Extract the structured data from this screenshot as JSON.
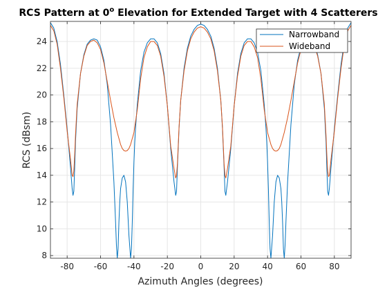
{
  "chart_data": {
    "type": "line",
    "title": "RCS Pattern at 0",
    "title_superscript": "o",
    "title_suffix": " Elevation for Extended Target with 4 Scatterers",
    "xlabel": "Azimuth Angles (degrees)",
    "ylabel": "RCS (dBsm)",
    "xlim": [
      -90,
      90
    ],
    "ylim": [
      7.8,
      25.5
    ],
    "xticks": [
      -80,
      -60,
      -40,
      -20,
      0,
      20,
      40,
      60,
      80
    ],
    "yticks": [
      8,
      10,
      12,
      14,
      16,
      18,
      20,
      22,
      24
    ],
    "grid": true,
    "legend_position": "top-right",
    "series": [
      {
        "name": "Narrowband",
        "color": "#0072BD",
        "x": [
          -90,
          -88,
          -86,
          -84,
          -82,
          -80,
          -78,
          -77,
          -76.5,
          -76,
          -75.5,
          -75,
          -74,
          -72,
          -70,
          -68,
          -66,
          -64,
          -62,
          -60,
          -58,
          -56,
          -54,
          -52,
          -51,
          -50.5,
          -50,
          -49.5,
          -49,
          -48.5,
          -48,
          -47,
          -46,
          -45,
          -44,
          -43,
          -42,
          -41.5,
          -41,
          -40.5,
          -40,
          -39.5,
          -39,
          -38,
          -36,
          -34,
          -32,
          -30,
          -28,
          -26,
          -24,
          -22,
          -20,
          -18,
          -16,
          -15,
          -14.5,
          -14,
          -13.5,
          -13,
          -12,
          -10,
          -8,
          -6,
          -4,
          -2,
          0,
          2,
          4,
          6,
          8,
          10,
          12,
          13,
          13.5,
          14,
          14.5,
          15,
          16,
          18,
          20,
          22,
          24,
          26,
          28,
          30,
          32,
          34,
          36,
          38,
          39,
          39.5,
          40,
          40.5,
          41,
          41.5,
          42,
          43,
          44,
          45,
          46,
          47,
          48,
          48.5,
          49,
          49.5,
          50,
          50.5,
          51,
          52,
          54,
          56,
          58,
          60,
          62,
          64,
          66,
          68,
          70,
          72,
          74,
          75,
          75.5,
          76,
          76.5,
          77,
          78,
          80,
          82,
          84,
          86,
          88,
          90
        ],
        "values": [
          25.4,
          25.0,
          24.0,
          22.3,
          20.0,
          17.5,
          14.6,
          13.0,
          12.5,
          12.8,
          14.5,
          16.5,
          19.0,
          21.6,
          23.0,
          23.8,
          24.1,
          24.2,
          24.1,
          23.6,
          22.6,
          20.8,
          17.8,
          13.5,
          10.5,
          8.8,
          7.8,
          8.5,
          10.5,
          12.0,
          13.0,
          13.8,
          14.0,
          13.5,
          12.0,
          9.5,
          7.8,
          8.5,
          10.5,
          13.0,
          15.0,
          16.5,
          17.6,
          19.3,
          21.8,
          23.2,
          23.9,
          24.2,
          24.2,
          23.9,
          23.1,
          21.6,
          19.2,
          16.0,
          13.5,
          12.5,
          12.8,
          14.5,
          16.0,
          17.5,
          19.6,
          22.0,
          23.5,
          24.4,
          24.9,
          25.2,
          25.3,
          25.2,
          24.9,
          24.4,
          23.5,
          22.0,
          19.6,
          17.5,
          16.0,
          14.5,
          12.8,
          12.5,
          13.5,
          16.0,
          19.2,
          21.6,
          23.1,
          23.9,
          24.2,
          24.2,
          23.9,
          23.2,
          21.8,
          19.3,
          17.6,
          16.5,
          15.0,
          13.0,
          10.5,
          8.5,
          7.8,
          9.5,
          12.0,
          13.5,
          14.0,
          13.8,
          13.0,
          12.0,
          10.5,
          8.5,
          7.8,
          8.8,
          10.5,
          13.5,
          17.8,
          20.8,
          22.6,
          23.6,
          24.1,
          24.2,
          24.1,
          23.8,
          23.0,
          21.6,
          19.0,
          16.5,
          14.5,
          12.8,
          12.5,
          13.0,
          14.6,
          17.5,
          20.0,
          22.3,
          24.0,
          25.0,
          25.4
        ]
      },
      {
        "name": "Wideband",
        "color": "#D95319",
        "x": [
          -90,
          -88,
          -86,
          -84,
          -82,
          -80,
          -78,
          -77,
          -76.5,
          -76,
          -75.5,
          -75,
          -74,
          -72,
          -70,
          -68,
          -66,
          -64,
          -62,
          -60,
          -58,
          -56,
          -54,
          -52,
          -50,
          -48,
          -47,
          -46,
          -45,
          -44,
          -43,
          -42,
          -40,
          -38,
          -36,
          -34,
          -32,
          -30,
          -28,
          -26,
          -24,
          -22,
          -20,
          -18,
          -16,
          -15,
          -14.5,
          -14,
          -13.5,
          -13,
          -12,
          -10,
          -8,
          -6,
          -4,
          -2,
          0,
          2,
          4,
          6,
          8,
          10,
          12,
          13,
          13.5,
          14,
          14.5,
          15,
          16,
          18,
          20,
          22,
          24,
          26,
          28,
          30,
          32,
          34,
          36,
          38,
          40,
          42,
          43,
          44,
          45,
          46,
          47,
          48,
          50,
          52,
          54,
          56,
          58,
          60,
          62,
          64,
          66,
          68,
          70,
          72,
          74,
          75,
          75.5,
          76,
          76.5,
          77,
          78,
          80,
          82,
          84,
          86,
          88,
          90
        ],
        "values": [
          25.2,
          24.8,
          23.8,
          22.0,
          19.8,
          17.3,
          15.2,
          14.0,
          13.9,
          14.3,
          15.5,
          17.0,
          19.3,
          21.6,
          22.9,
          23.7,
          24.0,
          24.1,
          23.9,
          23.4,
          22.4,
          21.0,
          19.6,
          18.3,
          17.2,
          16.3,
          16.0,
          15.85,
          15.8,
          15.85,
          16.0,
          16.3,
          17.2,
          18.9,
          21.2,
          22.8,
          23.6,
          24.0,
          24.0,
          23.7,
          22.9,
          21.4,
          19.2,
          16.2,
          14.5,
          13.8,
          14.0,
          14.8,
          16.2,
          17.6,
          19.6,
          21.8,
          23.3,
          24.2,
          24.7,
          25.0,
          25.1,
          25.0,
          24.7,
          24.2,
          23.3,
          21.8,
          19.6,
          17.6,
          16.2,
          14.8,
          14.0,
          13.8,
          14.5,
          16.2,
          19.2,
          21.4,
          22.9,
          23.7,
          24.0,
          24.0,
          23.6,
          22.8,
          21.2,
          18.9,
          17.2,
          16.3,
          16.0,
          15.85,
          15.8,
          15.85,
          16.0,
          16.3,
          17.2,
          18.3,
          19.6,
          21.0,
          22.4,
          23.4,
          23.9,
          24.1,
          24.0,
          23.7,
          22.9,
          21.6,
          19.3,
          17.0,
          15.5,
          14.3,
          13.9,
          14.0,
          15.2,
          17.3,
          19.8,
          22.0,
          23.8,
          24.8,
          25.2
        ]
      }
    ]
  }
}
